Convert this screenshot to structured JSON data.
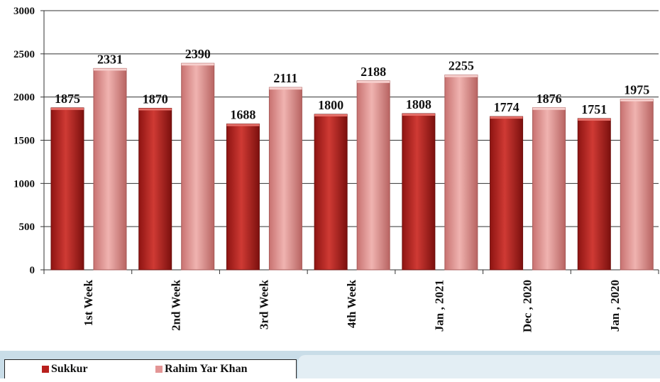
{
  "chart_data": {
    "type": "bar",
    "categories": [
      "1st Week",
      "2nd Week",
      "3rd Week",
      "4th Week",
      "Jan , 2021",
      "Dec , 2020",
      "Jan , 2020"
    ],
    "series": [
      {
        "name": "Sukkur",
        "values": [
          1875,
          1870,
          1688,
          1800,
          1808,
          1774,
          1751
        ],
        "color": "#b8201d"
      },
      {
        "name": "Rahim Yar Khan",
        "values": [
          2331,
          2390,
          2111,
          2188,
          2255,
          1876,
          1975
        ],
        "color": "#e39595"
      }
    ],
    "ylim": [
      0,
      3000
    ],
    "yticks": [
      "0",
      "500",
      "1000",
      "1500",
      "2000",
      "2500",
      "3000"
    ],
    "grid": true,
    "legend_position": "bottom-left",
    "title": "",
    "xlabel": "",
    "ylabel": ""
  }
}
